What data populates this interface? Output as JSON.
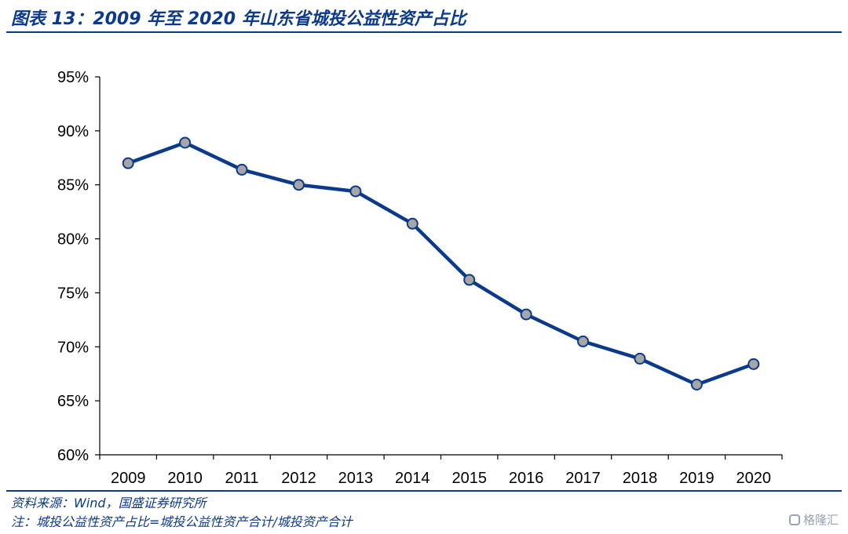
{
  "header": {
    "title": "图表 13：2009 年至 2020 年山东省城投公益性资产占比"
  },
  "footer": {
    "source": "资料来源：Wind，国盛证券研究所",
    "formula": "注：城投公益性资产占比=城投公益性资产合计/城投资产合计",
    "watermark": "格隆汇"
  },
  "colors": {
    "accent": "#0b3a8c",
    "line": "#0b3a8c",
    "marker_fill": "#a6a6a6"
  },
  "chart_data": {
    "type": "line",
    "categories": [
      "2009",
      "2010",
      "2011",
      "2012",
      "2013",
      "2014",
      "2015",
      "2016",
      "2017",
      "2018",
      "2019",
      "2020"
    ],
    "values": [
      87.0,
      88.9,
      86.4,
      85.0,
      84.4,
      81.4,
      76.2,
      73.0,
      70.5,
      68.9,
      66.5,
      68.4
    ],
    "ylim": [
      60,
      95
    ],
    "yticks": [
      "60%",
      "65%",
      "70%",
      "75%",
      "80%",
      "85%",
      "90%",
      "95%"
    ],
    "ytick_values": [
      60,
      65,
      70,
      75,
      80,
      85,
      90,
      95
    ],
    "title": "",
    "xlabel": "",
    "ylabel": "",
    "grid": false,
    "legend": "none"
  }
}
